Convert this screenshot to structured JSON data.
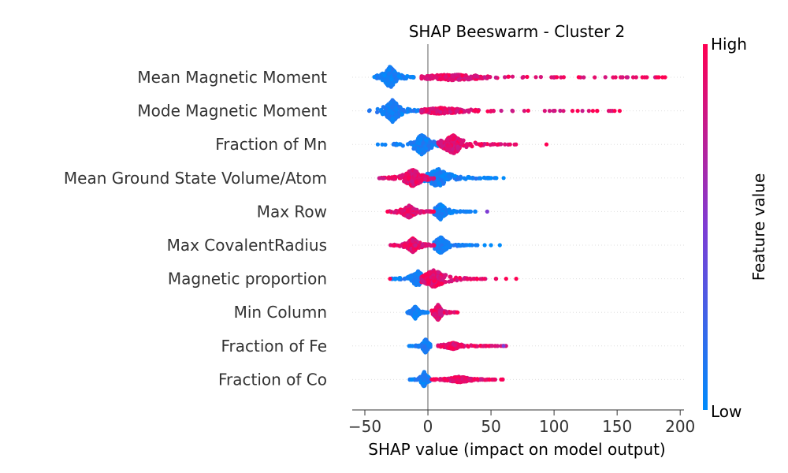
{
  "chart_data": {
    "type": "scatter",
    "subtype": "beeswarm",
    "title": "SHAP Beeswarm - Cluster 2",
    "xlabel": "SHAP value (impact on model output)",
    "x_ticks": [
      -50,
      0,
      50,
      100,
      150,
      200
    ],
    "x_tick_labels": [
      "−50",
      "0",
      "50",
      "100",
      "150",
      "200"
    ],
    "xlim": [
      -60,
      203
    ],
    "colorbar": {
      "label": "Feature value",
      "high_label": "High",
      "low_label": "Low",
      "high_color": "#ff0052",
      "low_color": "#008bfb",
      "mid_color": "#7e3cd4"
    },
    "features": [
      {
        "name": "Mean Magnetic Moment",
        "low": {
          "center": -30,
          "min": -45,
          "max": -10,
          "width": 14
        },
        "high": {
          "center": 20,
          "min": -5,
          "max": 188,
          "width": 4
        },
        "tail_points": [
          {
            "x": 183,
            "f": 1.0
          },
          {
            "x": 186,
            "f": 1.0
          },
          {
            "x": 188,
            "f": 1.0
          }
        ]
      },
      {
        "name": "Mode Magnetic Moment",
        "low": {
          "center": -28,
          "min": -48,
          "max": -5,
          "width": 14
        },
        "high": {
          "center": 10,
          "min": -5,
          "max": 152,
          "width": 4
        },
        "tail_points": [
          {
            "x": 148,
            "f": 1.0
          },
          {
            "x": 152,
            "f": 1.0
          }
        ]
      },
      {
        "name": "Fraction of Mn",
        "low": {
          "center": -5,
          "min": -40,
          "max": 8,
          "width": 13
        },
        "high": {
          "center": 20,
          "min": 8,
          "max": 72,
          "width": 12
        },
        "tail_points": [
          {
            "x": 94,
            "f": 1.0
          }
        ]
      },
      {
        "name": "Mean Ground State Volume/Atom",
        "low": {
          "center": 8,
          "min": -5,
          "max": 60,
          "width": 12
        },
        "high": {
          "center": -12,
          "min": -40,
          "max": 5,
          "width": 12
        },
        "tail_points": [
          {
            "x": 60,
            "f": 0.0
          }
        ]
      },
      {
        "name": "Max Row",
        "low": {
          "center": 10,
          "min": 5,
          "max": 38,
          "width": 10
        },
        "high": {
          "center": -15,
          "min": -32,
          "max": 5,
          "width": 8
        },
        "tail_points": [
          {
            "x": 47,
            "f": 0.5
          },
          {
            "x": -32,
            "f": 1.0
          }
        ]
      },
      {
        "name": "Max CovalentRadius",
        "low": {
          "center": 10,
          "min": 5,
          "max": 40,
          "width": 11
        },
        "high": {
          "center": -12,
          "min": -30,
          "max": 5,
          "width": 9
        },
        "tail_points": [
          {
            "x": 45,
            "f": 0.0
          },
          {
            "x": 50,
            "f": 0.0
          },
          {
            "x": 57,
            "f": 0.0
          }
        ]
      },
      {
        "name": "Magnetic proportion",
        "low": {
          "center": -8,
          "min": -30,
          "max": 8,
          "width": 10
        },
        "high": {
          "center": 5,
          "min": -5,
          "max": 55,
          "width": 12
        },
        "tail_points": [
          {
            "x": 62,
            "f": 1.0
          },
          {
            "x": 70,
            "f": 1.0
          },
          {
            "x": -30,
            "f": 1.0
          }
        ]
      },
      {
        "name": "Min Column",
        "low": {
          "center": -10,
          "min": -17,
          "max": 0,
          "width": 8
        },
        "high": {
          "center": 8,
          "min": 3,
          "max": 24,
          "width": 10
        },
        "tail_points": [
          {
            "x": 23,
            "f": 1.0
          }
        ]
      },
      {
        "name": "Fraction of Fe",
        "low": {
          "center": -2,
          "min": -15,
          "max": 2,
          "width": 9
        },
        "high": {
          "center": 20,
          "min": 8,
          "max": 62,
          "width": 4
        },
        "tail_points": [
          {
            "x": 60,
            "f": 0.5
          }
        ]
      },
      {
        "name": "Fraction of Co",
        "low": {
          "center": -3,
          "min": -15,
          "max": 2,
          "width": 10
        },
        "high": {
          "center": 25,
          "min": 2,
          "max": 60,
          "width": 4
        },
        "tail_points": [
          {
            "x": 58,
            "f": 1.0
          }
        ]
      }
    ]
  }
}
